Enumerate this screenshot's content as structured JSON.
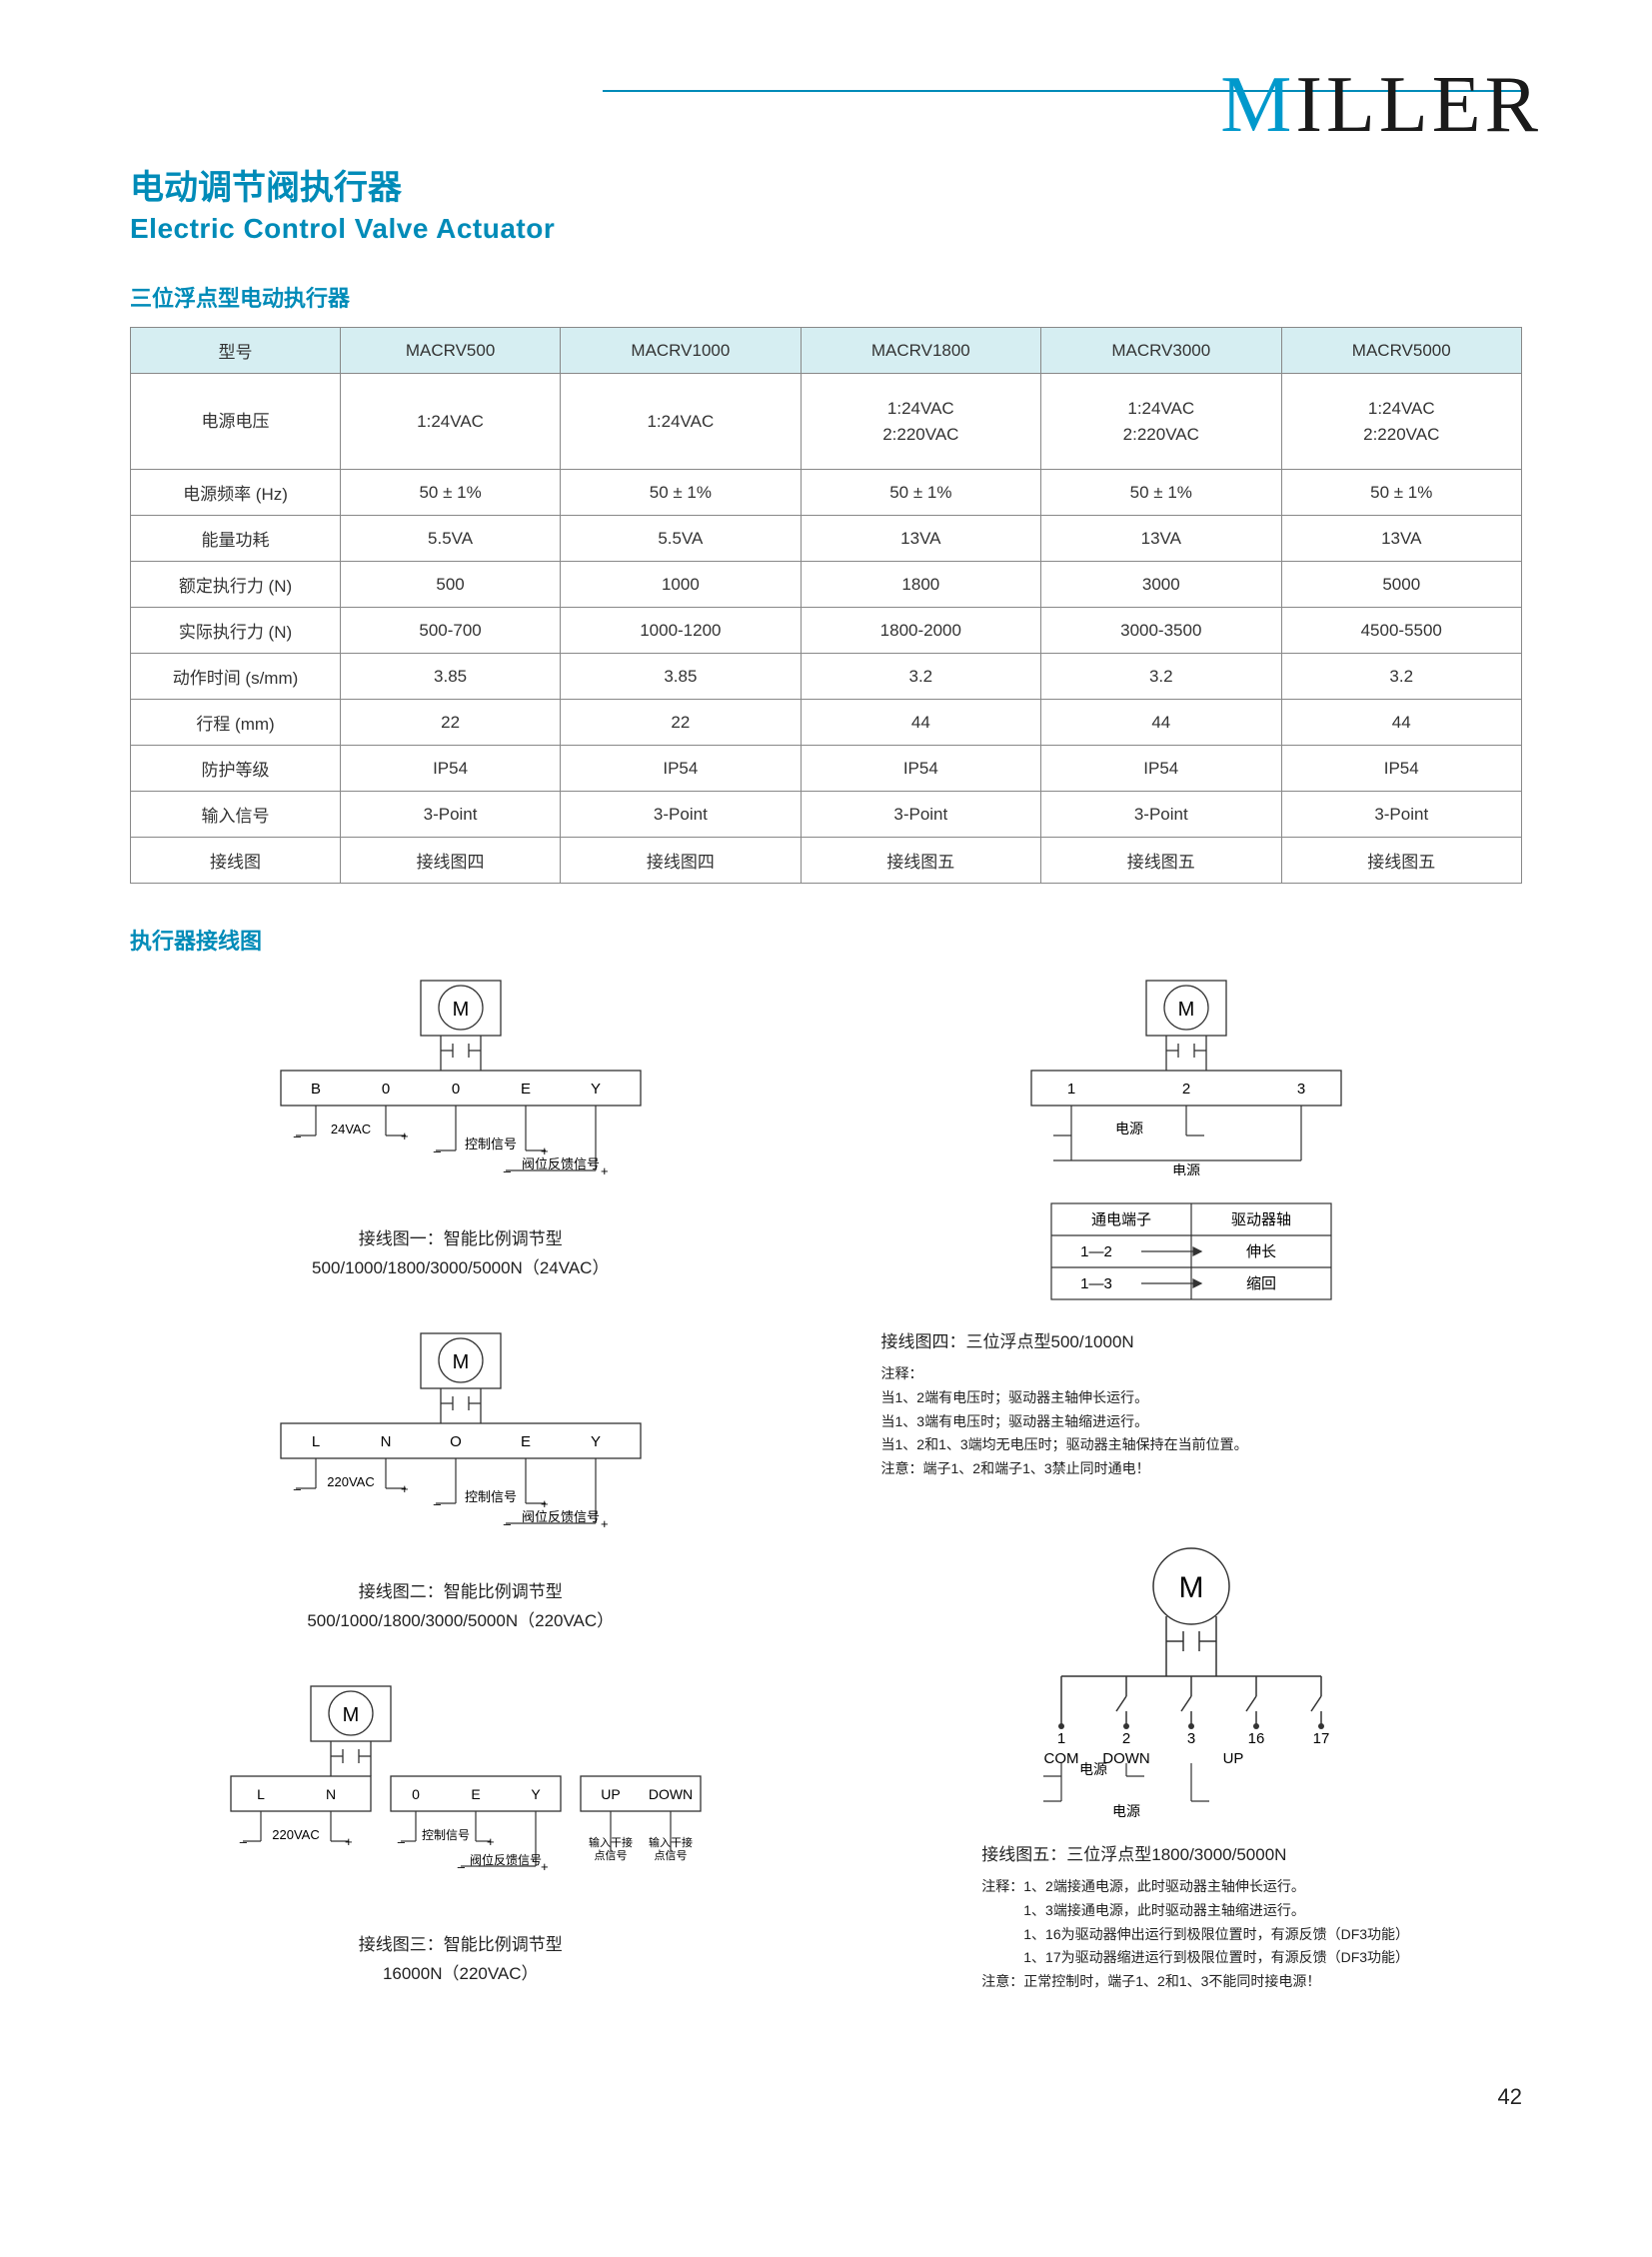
{
  "logo_text_m": "M",
  "logo_text_rest": "ILLER",
  "title_cn": "电动调节阀执行器",
  "title_en": "Electric Control Valve Actuator",
  "section1_heading": "三位浮点型电动执行器",
  "section2_heading": "执行器接线图",
  "page_number": "42",
  "colors": {
    "brand": "#008bb8",
    "header_bg": "#d6eef2",
    "border": "#888888",
    "text": "#222222"
  },
  "spec_table": {
    "columns": [
      "型号",
      "MACRV500",
      "MACRV1000",
      "MACRV1800",
      "MACRV3000",
      "MACRV5000"
    ],
    "rows": [
      {
        "label": "电源电压",
        "tall": true,
        "cells": [
          "1:24VAC",
          "1:24VAC",
          "1:24VAC\n2:220VAC",
          "1:24VAC\n2:220VAC",
          "1:24VAC\n2:220VAC"
        ]
      },
      {
        "label": "电源频率 (Hz)",
        "cells": [
          "50 ± 1%",
          "50 ± 1%",
          "50 ± 1%",
          "50 ± 1%",
          "50 ± 1%"
        ]
      },
      {
        "label": "能量功耗",
        "cells": [
          "5.5VA",
          "5.5VA",
          "13VA",
          "13VA",
          "13VA"
        ]
      },
      {
        "label": "额定执行力 (N)",
        "cells": [
          "500",
          "1000",
          "1800",
          "3000",
          "5000"
        ]
      },
      {
        "label": "实际执行力 (N)",
        "cells": [
          "500-700",
          "1000-1200",
          "1800-2000",
          "3000-3500",
          "4500-5500"
        ]
      },
      {
        "label": "动作时间 (s/mm)",
        "cells": [
          "3.85",
          "3.85",
          "3.2",
          "3.2",
          "3.2"
        ]
      },
      {
        "label": "行程 (mm)",
        "cells": [
          "22",
          "22",
          "44",
          "44",
          "44"
        ]
      },
      {
        "label": "防护等级",
        "cells": [
          "IP54",
          "IP54",
          "IP54",
          "IP54",
          "IP54"
        ]
      },
      {
        "label": "输入信号",
        "cells": [
          "3-Point",
          "3-Point",
          "3-Point",
          "3-Point",
          "3-Point"
        ]
      },
      {
        "label": "接线图",
        "cells": [
          "接线图四",
          "接线图四",
          "接线图五",
          "接线图五",
          "接线图五"
        ]
      }
    ]
  },
  "diagram1": {
    "terminals": [
      "B",
      "0",
      "0",
      "E",
      "Y"
    ],
    "l_power": "24VAC",
    "l_ctrl": "控制信号",
    "l_fb": "阀位反馈信号",
    "cap_title": "接线图一：智能比例调节型",
    "cap_sub": "500/1000/1800/3000/5000N（24VAC）"
  },
  "diagram2": {
    "terminals": [
      "L",
      "N",
      "O",
      "E",
      "Y"
    ],
    "l_power": "220VAC",
    "l_ctrl": "控制信号",
    "l_fb": "阀位反馈信号",
    "cap_title": "接线图二：智能比例调节型",
    "cap_sub": "500/1000/1800/3000/5000N（220VAC）"
  },
  "diagram3": {
    "terminals_a": [
      "L",
      "N"
    ],
    "terminals_b": [
      "0",
      "E",
      "Y"
    ],
    "terminals_c": [
      "UP",
      "DOWN"
    ],
    "l_power": "220VAC",
    "l_ctrl": "控制信号",
    "l_fb": "阀位反馈信号",
    "l_in1": "输入干接\n点信号",
    "l_in2": "输入干接\n点信号",
    "cap_title": "接线图三：智能比例调节型",
    "cap_sub": "16000N（220VAC）"
  },
  "diagram4": {
    "terminals": [
      "1",
      "2",
      "3"
    ],
    "l_power1": "电源",
    "l_power2": "电源",
    "table_hdr1": "通电端子",
    "table_hdr2": "驱动器轴",
    "row1_a": "1—2",
    "row1_b": "伸长",
    "row2_a": "1—3",
    "row2_b": "缩回",
    "cap_title": "接线图四：三位浮点型500/1000N",
    "notes": [
      "注释：",
      "当1、2端有电压时；驱动器主轴伸长运行。",
      "当1、3端有电压时；驱动器主轴缩进运行。",
      "当1、2和1、3端均无电压时；驱动器主轴保持在当前位置。",
      "注意：端子1、2和端子1、3禁止同时通电！"
    ]
  },
  "diagram5": {
    "terminals": [
      "1",
      "2",
      "3",
      "16",
      "17"
    ],
    "term_labels": [
      "COM",
      "DOWN",
      "",
      "UP",
      ""
    ],
    "l_power1": "电源",
    "l_power2": "电源",
    "cap_title": "接线图五：三位浮点型1800/3000/5000N",
    "notes": [
      "注释：1、2端接通电源，此时驱动器主轴伸长运行。",
      "　　　1、3端接通电源，此时驱动器主轴缩进运行。",
      "　　　1、16为驱动器伸出运行到极限位置时，有源反馈（DF3功能）",
      "　　　1、17为驱动器缩进运行到极限位置时，有源反馈（DF3功能）",
      "注意：正常控制时，端子1、2和1、3不能同时接电源！"
    ]
  }
}
